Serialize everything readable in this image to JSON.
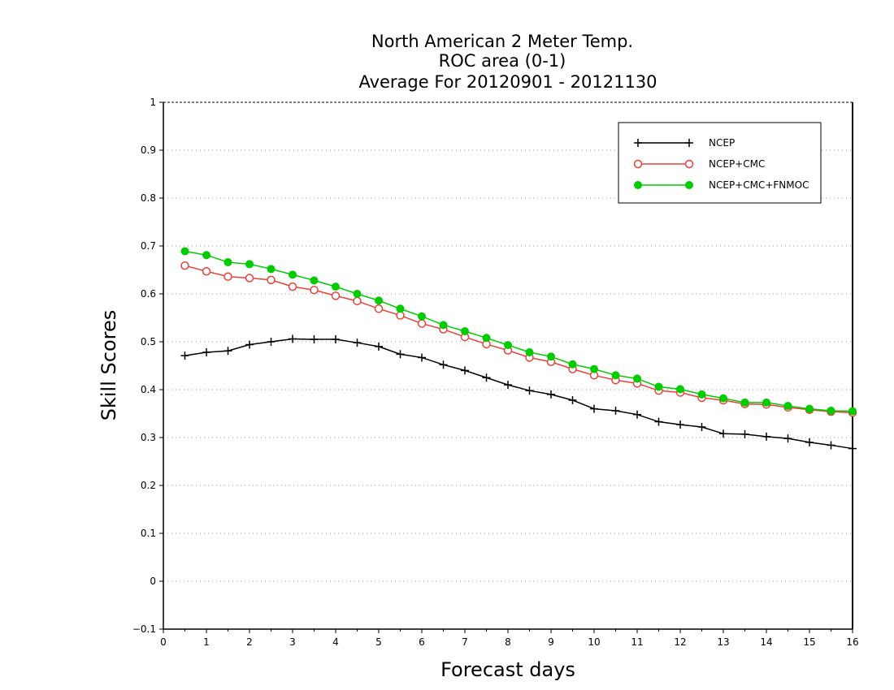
{
  "chart_data": {
    "type": "line",
    "title_lines": [
      "North American 2 Meter Temp.",
      "ROC area (0-1)",
      "Average For 20120901 - 20121130"
    ],
    "xlabel": "Forecast days",
    "ylabel": "Skill Scores",
    "xlim": [
      0,
      16
    ],
    "ylim": [
      -0.1,
      1
    ],
    "x_ticks": [
      "0",
      "1",
      "2",
      "3",
      "4",
      "5",
      "6",
      "7",
      "8",
      "9",
      "10",
      "11",
      "12",
      "13",
      "14",
      "15",
      "16"
    ],
    "y_ticks": [
      "−0.1",
      "0",
      "0.1",
      "0.2",
      "0.3",
      "0.4",
      "0.5",
      "0.6",
      "0.7",
      "0.8",
      "0.9",
      "1"
    ],
    "grid": "horizontal dotted",
    "legend_position": "top-right",
    "x": [
      0.5,
      1,
      1.5,
      2,
      2.5,
      3,
      3.5,
      4,
      4.5,
      5,
      5.5,
      6,
      6.5,
      7,
      7.5,
      8,
      8.5,
      9,
      9.5,
      10,
      10.5,
      11,
      11.5,
      12,
      12.5,
      13,
      13.5,
      14,
      14.5,
      15,
      15.5,
      16
    ],
    "series": [
      {
        "name": "NCEP",
        "color": "#000000",
        "marker": "plus",
        "values": [
          0.471,
          0.478,
          0.481,
          0.494,
          0.5,
          0.506,
          0.505,
          0.505,
          0.498,
          0.49,
          0.474,
          0.467,
          0.452,
          0.44,
          0.425,
          0.41,
          0.398,
          0.39,
          0.378,
          0.36,
          0.356,
          0.348,
          0.333,
          0.327,
          0.322,
          0.308,
          0.307,
          0.302,
          0.298,
          0.29,
          0.284,
          0.277
        ]
      },
      {
        "name": "NCEP+CMC",
        "color": "#e8413a",
        "marker": "open-circle",
        "values": [
          0.659,
          0.647,
          0.636,
          0.633,
          0.629,
          0.615,
          0.608,
          0.596,
          0.585,
          0.569,
          0.555,
          0.538,
          0.526,
          0.51,
          0.495,
          0.482,
          0.467,
          0.458,
          0.443,
          0.43,
          0.42,
          0.413,
          0.398,
          0.394,
          0.383,
          0.378,
          0.37,
          0.369,
          0.363,
          0.358,
          0.354,
          0.352
        ]
      },
      {
        "name": "NCEP+CMC+FNMOC",
        "color": "#00cc00",
        "marker": "filled-circle",
        "values": [
          0.689,
          0.681,
          0.666,
          0.662,
          0.652,
          0.64,
          0.628,
          0.615,
          0.6,
          0.586,
          0.569,
          0.553,
          0.535,
          0.522,
          0.508,
          0.493,
          0.478,
          0.469,
          0.453,
          0.443,
          0.43,
          0.423,
          0.406,
          0.401,
          0.39,
          0.382,
          0.373,
          0.373,
          0.366,
          0.36,
          0.356,
          0.355
        ]
      }
    ]
  }
}
